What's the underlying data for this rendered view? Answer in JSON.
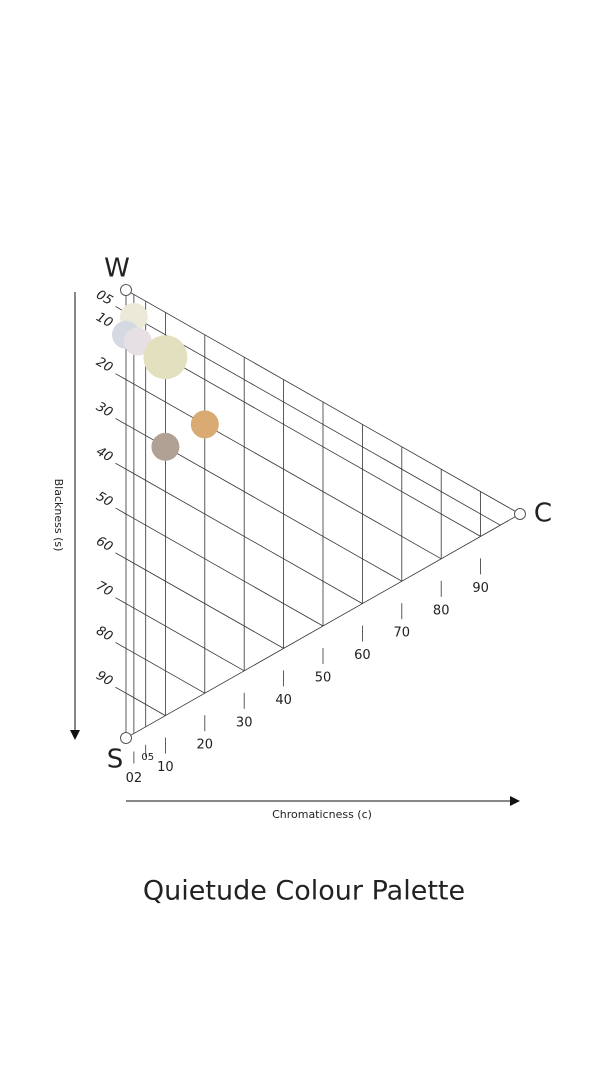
{
  "chart_data": {
    "type": "ncs-triangle",
    "title": "Quietude Colour Palette",
    "corners": {
      "w": "W",
      "s": "S",
      "c": "C"
    },
    "x_label": "Chromaticness (c)",
    "y_label": "Blackness (s)",
    "blackness_ticks": [
      {
        "value": 5,
        "label": "05"
      },
      10,
      20,
      30,
      40,
      50,
      60,
      70,
      80,
      90
    ],
    "chromaticness_ticks": [
      {
        "value": 2,
        "label": "02"
      },
      {
        "value": 5,
        "label": "05"
      },
      10,
      20,
      30,
      40,
      50,
      60,
      70,
      80,
      90
    ],
    "points": {
      "blackness": [
        5,
        10,
        10,
        10,
        20,
        30
      ],
      "chromaticness": [
        2,
        0,
        3,
        10,
        20,
        10
      ],
      "sizes": [
        14,
        14,
        14,
        22,
        14,
        14
      ],
      "colors": [
        "#ece9d8",
        "#d5dae2",
        "#e6dfe3",
        "#e3e0bf",
        "#d9ab73",
        "#b0a194"
      ]
    }
  }
}
